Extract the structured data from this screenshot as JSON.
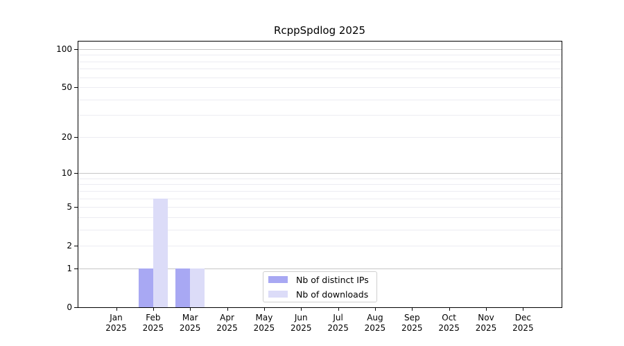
{
  "chart_data": {
    "type": "bar",
    "title": "RcppSpdlog 2025",
    "categories": [
      "Jan 2025",
      "Feb 2025",
      "Mar 2025",
      "Apr 2025",
      "May 2025",
      "Jun 2025",
      "Jul 2025",
      "Aug 2025",
      "Sep 2025",
      "Oct 2025",
      "Nov 2025",
      "Dec 2025"
    ],
    "series": [
      {
        "name": "Nb of distinct IPs",
        "color": "#a8a8f3",
        "values": [
          0,
          1,
          1,
          0,
          0,
          0,
          0,
          0,
          0,
          0,
          0,
          0
        ]
      },
      {
        "name": "Nb of downloads",
        "color": "#dcdcf8",
        "values": [
          0,
          6,
          1,
          0,
          0,
          0,
          0,
          0,
          0,
          0,
          0,
          0
        ]
      }
    ],
    "xlabel": "",
    "ylabel": "",
    "yscale": "log1p",
    "ylim": [
      0,
      115
    ],
    "yticks": [
      0,
      1,
      2,
      5,
      10,
      20,
      50,
      100
    ],
    "major_gridlines": [
      1,
      10,
      100
    ],
    "minor_gridlines": [
      2,
      3,
      4,
      5,
      6,
      7,
      8,
      9,
      20,
      30,
      40,
      50,
      60,
      70,
      80,
      90
    ],
    "grid": "horizontal",
    "legend_position": "inside-bottom-center",
    "colors": {
      "axis": "#000000",
      "major_grid": "#c6c6c6",
      "minor_grid": "#ececf2",
      "background": "#ffffff",
      "text": "#000000"
    }
  }
}
